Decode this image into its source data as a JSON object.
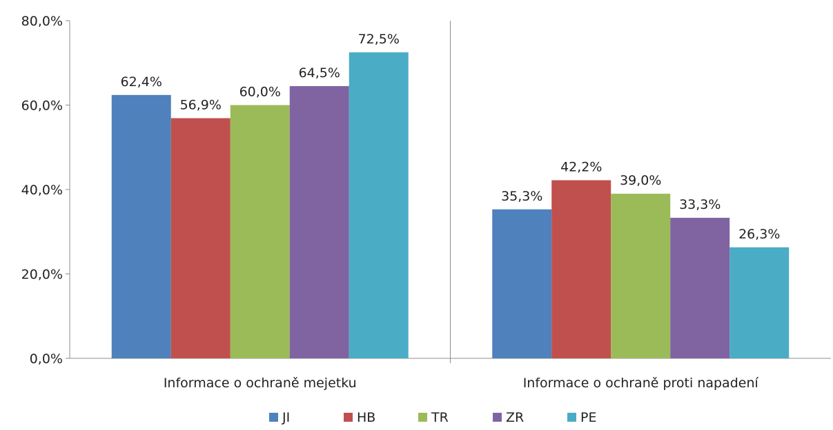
{
  "chart_data": {
    "type": "bar",
    "categories": [
      "Informace o ochraně mejetku",
      "Informace o ochraně proti napadení"
    ],
    "series": [
      {
        "name": "JI",
        "values": [
          62.4,
          35.3
        ],
        "labels": [
          "62,4%",
          "35,3%"
        ],
        "color": "#4F81BD"
      },
      {
        "name": "HB",
        "values": [
          56.9,
          42.2
        ],
        "labels": [
          "56,9%",
          "42,2%"
        ],
        "color": "#C0504D"
      },
      {
        "name": "TR",
        "values": [
          60.0,
          39.0
        ],
        "labels": [
          "60,0%",
          "39,0%"
        ],
        "color": "#9BBB59"
      },
      {
        "name": "ZR",
        "values": [
          64.5,
          33.3
        ],
        "labels": [
          "64,5%",
          "33,3%"
        ],
        "color": "#8064A2"
      },
      {
        "name": "PE",
        "values": [
          72.5,
          26.3
        ],
        "labels": [
          "72,5%",
          "26,3%"
        ],
        "color": "#4BACC6"
      }
    ],
    "ylim": [
      0,
      80
    ],
    "yticks": [
      0,
      20,
      40,
      60,
      80
    ],
    "ytick_labels": [
      "0,0%",
      "20,0%",
      "40,0%",
      "60,0%",
      "80,0%"
    ],
    "xlabel": "",
    "ylabel": "",
    "title": "",
    "grid": false,
    "legend_position": "bottom"
  }
}
